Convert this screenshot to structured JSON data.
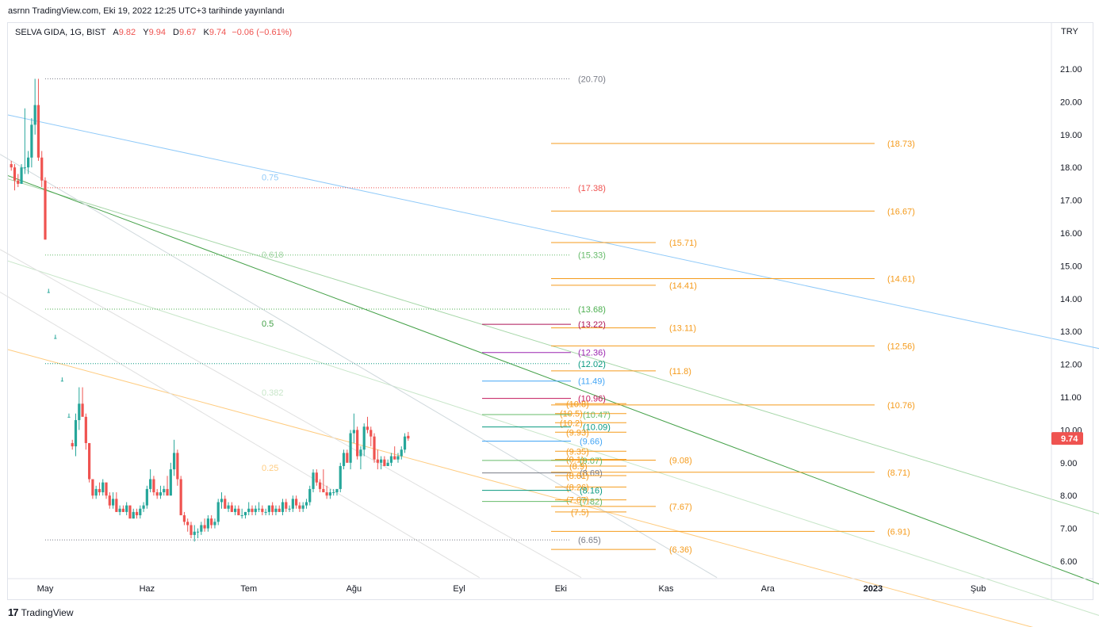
{
  "caption": "asrnn TradingView.com, Eki 19, 2022 12:25 UTC+3 tarihinde yayınlandı",
  "legend": {
    "symbol": "SELVA GIDA, 1G, BIST",
    "open_label": "A",
    "open": "9.82",
    "high_label": "Y",
    "high": "9.94",
    "low_label": "D",
    "low": "9.67",
    "close_label": "K",
    "close": "9.74",
    "change": "−0.06 (−0.61%)"
  },
  "currency": "TRY",
  "brand": "TradingView",
  "colors": {
    "up": "#26a69a",
    "down": "#ef5350",
    "orange": "#f59b1c",
    "tag": "#ef5350"
  },
  "chart_data": {
    "type": "candlestick",
    "y_axis": {
      "min": 5.6,
      "max": 21.8,
      "ticks": [
        "6.00",
        "7.00",
        "8.00",
        "9.00",
        "10.00",
        "11.00",
        "12.00",
        "13.00",
        "14.00",
        "15.00",
        "16.00",
        "17.00",
        "18.00",
        "19.00",
        "20.00",
        "21.00"
      ]
    },
    "x_axis": {
      "ticks": [
        {
          "label": "May",
          "day": 12
        },
        {
          "label": "Haz",
          "day": 42
        },
        {
          "label": "Tem",
          "day": 72
        },
        {
          "label": "Ağu",
          "day": 103
        },
        {
          "label": "Eyl",
          "day": 134
        },
        {
          "label": "Eki",
          "day": 164
        },
        {
          "label": "Kas",
          "day": 195
        },
        {
          "label": "Ara",
          "day": 225
        },
        {
          "label": "2023",
          "day": 256
        },
        {
          "label": "Şub",
          "day": 287
        }
      ]
    },
    "last_price": "9.74",
    "candles": [
      [
        2,
        18.1,
        18.2,
        17.9,
        18.0
      ],
      [
        3,
        18.0,
        18.1,
        17.3,
        17.6
      ],
      [
        4,
        17.6,
        17.8,
        17.4,
        17.5
      ],
      [
        5,
        17.5,
        18.1,
        17.5,
        18.0
      ],
      [
        6,
        18.0,
        19.8,
        17.8,
        18.0
      ],
      [
        7,
        18.0,
        18.5,
        17.8,
        18.3
      ],
      [
        8,
        18.3,
        19.5,
        18.0,
        19.3
      ],
      [
        9,
        19.3,
        20.7,
        19.0,
        19.9
      ],
      [
        10,
        19.9,
        20.7,
        18.2,
        18.3
      ],
      [
        11,
        18.3,
        18.5,
        17.4,
        17.6
      ],
      [
        12,
        17.6,
        17.7,
        15.8,
        15.8
      ],
      [
        13,
        14.2,
        14.3,
        14.2,
        14.2
      ],
      [
        15,
        12.8,
        12.9,
        12.8,
        12.8
      ],
      [
        17,
        11.5,
        11.6,
        11.5,
        11.5
      ],
      [
        19,
        10.4,
        10.5,
        10.4,
        10.4
      ],
      [
        20,
        9.6,
        9.7,
        9.4,
        9.5
      ],
      [
        21,
        9.5,
        10.5,
        9.2,
        10.3
      ],
      [
        22,
        10.3,
        11.3,
        10.0,
        10.8
      ],
      [
        23,
        10.8,
        11.3,
        10.5,
        10.4
      ],
      [
        24,
        10.4,
        10.5,
        9.4,
        9.6
      ],
      [
        25,
        9.6,
        9.6,
        8.4,
        8.5
      ],
      [
        26,
        8.5,
        8.5,
        7.9,
        8.0
      ],
      [
        27,
        8.0,
        8.3,
        7.9,
        8.2
      ],
      [
        28,
        8.2,
        8.4,
        8.0,
        8.1
      ],
      [
        29,
        8.1,
        8.5,
        8.0,
        8.4
      ],
      [
        30,
        8.4,
        8.4,
        7.9,
        8.0
      ],
      [
        31,
        8.0,
        8.1,
        7.6,
        7.7
      ],
      [
        32,
        7.7,
        8.1,
        7.6,
        7.9
      ],
      [
        33,
        7.9,
        8.1,
        7.5,
        7.5
      ],
      [
        34,
        7.5,
        7.7,
        7.4,
        7.6
      ],
      [
        35,
        7.6,
        7.7,
        7.5,
        7.5
      ],
      [
        36,
        7.5,
        7.8,
        7.4,
        7.7
      ],
      [
        37,
        7.7,
        7.7,
        7.3,
        7.3
      ],
      [
        38,
        7.3,
        7.6,
        7.3,
        7.5
      ],
      [
        39,
        7.5,
        7.6,
        7.3,
        7.4
      ],
      [
        40,
        7.4,
        7.7,
        7.3,
        7.6
      ],
      [
        41,
        7.6,
        7.8,
        7.5,
        7.7
      ],
      [
        42,
        7.7,
        8.3,
        7.6,
        8.2
      ],
      [
        43,
        8.2,
        8.8,
        8.1,
        8.5
      ],
      [
        44,
        8.5,
        8.6,
        8.0,
        8.1
      ],
      [
        45,
        8.1,
        8.2,
        7.9,
        8.0
      ],
      [
        46,
        8.0,
        8.3,
        7.9,
        8.1
      ],
      [
        47,
        8.1,
        8.3,
        8.0,
        8.2
      ],
      [
        48,
        8.2,
        8.6,
        8.0,
        8.0
      ],
      [
        49,
        8.0,
        9.0,
        8.0,
        8.8
      ],
      [
        50,
        8.8,
        9.7,
        8.6,
        9.3
      ],
      [
        51,
        9.3,
        9.4,
        8.3,
        8.5
      ],
      [
        52,
        8.5,
        8.6,
        7.4,
        7.4
      ],
      [
        53,
        7.4,
        7.5,
        7.1,
        7.2
      ],
      [
        54,
        7.2,
        7.3,
        6.9,
        7.1
      ],
      [
        55,
        7.1,
        7.2,
        6.7,
        6.8
      ],
      [
        56,
        6.8,
        7.1,
        6.6,
        6.9
      ],
      [
        57,
        6.9,
        7.0,
        6.7,
        6.9
      ],
      [
        58,
        6.9,
        7.2,
        6.8,
        7.1
      ],
      [
        59,
        7.1,
        7.3,
        6.9,
        7.0
      ],
      [
        60,
        7.0,
        7.4,
        6.9,
        7.3
      ],
      [
        61,
        7.3,
        7.4,
        7.0,
        7.1
      ],
      [
        62,
        7.1,
        7.3,
        7.0,
        7.2
      ],
      [
        63,
        7.2,
        7.9,
        7.1,
        7.8
      ],
      [
        64,
        7.8,
        8.1,
        7.6,
        7.9
      ],
      [
        65,
        7.9,
        8.0,
        7.6,
        7.6
      ],
      [
        66,
        7.6,
        7.8,
        7.5,
        7.7
      ],
      [
        67,
        7.7,
        7.8,
        7.5,
        7.5
      ],
      [
        68,
        7.5,
        7.7,
        7.4,
        7.6
      ],
      [
        69,
        7.6,
        7.7,
        7.4,
        7.4
      ],
      [
        70,
        7.4,
        7.6,
        7.3,
        7.4
      ],
      [
        71,
        7.4,
        7.5,
        7.3,
        7.5
      ],
      [
        72,
        7.5,
        7.8,
        7.4,
        7.6
      ],
      [
        73,
        7.6,
        7.7,
        7.4,
        7.5
      ],
      [
        74,
        7.5,
        7.7,
        7.4,
        7.6
      ],
      [
        75,
        7.6,
        7.8,
        7.5,
        7.6
      ],
      [
        76,
        7.6,
        7.7,
        7.4,
        7.5
      ],
      [
        77,
        7.5,
        7.6,
        7.4,
        7.5
      ],
      [
        78,
        7.5,
        7.7,
        7.4,
        7.7
      ],
      [
        79,
        7.7,
        7.8,
        7.4,
        7.5
      ],
      [
        80,
        7.5,
        7.7,
        7.4,
        7.6
      ],
      [
        81,
        7.6,
        7.7,
        7.5,
        7.5
      ],
      [
        82,
        7.5,
        7.9,
        7.4,
        7.8
      ],
      [
        83,
        7.8,
        7.9,
        7.5,
        7.6
      ],
      [
        84,
        7.6,
        7.7,
        7.5,
        7.6
      ],
      [
        85,
        7.6,
        8.0,
        7.5,
        7.9
      ],
      [
        86,
        7.9,
        8.0,
        7.6,
        7.7
      ],
      [
        87,
        7.7,
        7.8,
        7.5,
        7.6
      ],
      [
        88,
        7.6,
        7.8,
        7.5,
        7.7
      ],
      [
        89,
        7.7,
        7.9,
        7.6,
        7.8
      ],
      [
        90,
        7.8,
        8.3,
        7.7,
        8.2
      ],
      [
        91,
        8.2,
        8.8,
        8.1,
        8.7
      ],
      [
        92,
        8.7,
        8.8,
        8.3,
        8.4
      ],
      [
        93,
        8.4,
        8.5,
        8.1,
        8.2
      ],
      [
        94,
        8.2,
        8.8,
        8.1,
        8.1
      ],
      [
        95,
        8.1,
        8.3,
        7.9,
        8.0
      ],
      [
        96,
        8.0,
        8.2,
        7.9,
        8.1
      ],
      [
        97,
        8.1,
        8.2,
        8.0,
        8.1
      ],
      [
        98,
        8.1,
        8.2,
        8.0,
        8.2
      ],
      [
        99,
        8.2,
        9.0,
        8.1,
        8.9
      ],
      [
        100,
        8.9,
        9.4,
        8.8,
        9.3
      ],
      [
        101,
        9.3,
        9.4,
        9.0,
        9.0
      ],
      [
        102,
        9.0,
        10.0,
        8.8,
        9.9
      ],
      [
        103,
        9.9,
        10.5,
        9.6,
        10.0
      ],
      [
        104,
        10.0,
        10.1,
        9.1,
        9.2
      ],
      [
        105,
        9.2,
        9.5,
        8.8,
        9.4
      ],
      [
        106,
        9.4,
        10.2,
        9.2,
        10.1
      ],
      [
        107,
        10.1,
        10.4,
        9.9,
        10.0
      ],
      [
        108,
        10.0,
        10.1,
        9.5,
        9.8
      ],
      [
        109,
        9.8,
        9.9,
        9.0,
        9.1
      ],
      [
        110,
        9.1,
        9.4,
        8.8,
        9.0
      ],
      [
        111,
        9.0,
        9.2,
        8.8,
        9.1
      ],
      [
        112,
        9.1,
        9.2,
        8.9,
        8.9
      ],
      [
        113,
        8.9,
        9.1,
        8.9,
        9.0
      ],
      [
        114,
        9.0,
        9.3,
        8.9,
        9.2
      ],
      [
        115,
        9.2,
        9.5,
        9.1,
        9.1
      ],
      [
        116,
        9.1,
        9.3,
        9.0,
        9.2
      ],
      [
        117,
        9.2,
        9.5,
        9.1,
        9.4
      ],
      [
        118,
        9.4,
        9.9,
        9.3,
        9.8
      ],
      [
        119,
        9.82,
        9.94,
        9.67,
        9.74
      ]
    ],
    "horizontal_levels": [
      {
        "label": "(20.70)",
        "value": 20.7,
        "color": "#787b86"
      },
      {
        "label": "(17.38)",
        "value": 17.38,
        "color": "#ef5350"
      },
      {
        "label": "(15.33)",
        "value": 15.33,
        "color": "#66bb6a"
      },
      {
        "label": "(13.68)",
        "value": 13.68,
        "color": "#4caf50"
      },
      {
        "label": "(12.02)",
        "value": 12.02,
        "color": "#089981"
      },
      {
        "label": "(6.65)",
        "value": 6.65,
        "color": "#787b86"
      }
    ],
    "projection_levels": [
      {
        "label": "(18.73)",
        "value": 18.73
      },
      {
        "label": "(16.67)",
        "value": 16.67
      },
      {
        "label": "(15.71)",
        "value": 15.71
      },
      {
        "label": "(14.61)",
        "value": 14.61
      },
      {
        "label": "(14.41)",
        "value": 14.41
      },
      {
        "label": "(13.11)",
        "value": 13.11
      },
      {
        "label": "(12.56)",
        "value": 12.56
      },
      {
        "label": "(11.8)",
        "value": 11.8
      },
      {
        "label": "(10.76)",
        "value": 10.76
      },
      {
        "label": "(9.08)",
        "value": 9.08
      },
      {
        "label": "(8.71)",
        "value": 8.71
      },
      {
        "label": "(7.67)",
        "value": 7.67
      },
      {
        "label": "(6.91)",
        "value": 6.91
      },
      {
        "label": "(6.36)",
        "value": 6.36
      }
    ],
    "short_levels": [
      {
        "label": "(13.22)",
        "value": 13.22,
        "color": "#ad1457"
      },
      {
        "label": "(12.36)",
        "value": 12.36,
        "color": "#9c27b0"
      },
      {
        "label": "(11.49)",
        "value": 11.49,
        "color": "#42a5f5"
      },
      {
        "label": "(10.96)",
        "value": 10.96,
        "color": "#c2185b"
      },
      {
        "label": "(10.8)",
        "value": 10.8,
        "color": "#f59b1c"
      },
      {
        "label": "(10.5)",
        "value": 10.5,
        "color": "#f59b1c"
      },
      {
        "label": "(10.47)",
        "value": 10.47,
        "color": "#66bb6a"
      },
      {
        "label": "(10.2)",
        "value": 10.22,
        "color": "#f59b1c"
      },
      {
        "label": "(10.09)",
        "value": 10.09,
        "color": "#089981"
      },
      {
        "label": "(9.93)",
        "value": 9.93,
        "color": "#f59b1c"
      },
      {
        "label": "(9.66)",
        "value": 9.66,
        "color": "#42a5f5"
      },
      {
        "label": "(9.35)",
        "value": 9.35,
        "color": "#f59b1c"
      },
      {
        "label": "(9.1)",
        "value": 9.1,
        "color": "#f59b1c"
      },
      {
        "label": "(9.07)",
        "value": 9.07,
        "color": "#66bb6a"
      },
      {
        "label": "(8.9)",
        "value": 8.9,
        "color": "#f59b1c"
      },
      {
        "label": "(8.69)",
        "value": 8.69,
        "color": "#787b86"
      },
      {
        "label": "(8.61)",
        "value": 8.61,
        "color": "#f59b1c"
      },
      {
        "label": "(8.26)",
        "value": 8.26,
        "color": "#f59b1c"
      },
      {
        "label": "(8.16)",
        "value": 8.16,
        "color": "#089981"
      },
      {
        "label": "(7.87)",
        "value": 7.87,
        "color": "#f59b1c"
      },
      {
        "label": "(7.82)",
        "value": 7.82,
        "color": "#66bb6a"
      },
      {
        "label": "(7.5)",
        "value": 7.5,
        "color": "#f59b1c"
      }
    ],
    "fib_fan": [
      {
        "label": "0.75",
        "value": 17.7,
        "color": "#90caf9"
      },
      {
        "label": "0.618",
        "value": 15.35,
        "color": "#a5d6a7"
      },
      {
        "label": "0.5",
        "value": 13.25,
        "color": "#43a047"
      },
      {
        "label": "0.382",
        "value": 11.15,
        "color": "#c8e6c9"
      },
      {
        "label": "0.25",
        "value": 8.85,
        "color": "#ffcc80"
      }
    ]
  }
}
